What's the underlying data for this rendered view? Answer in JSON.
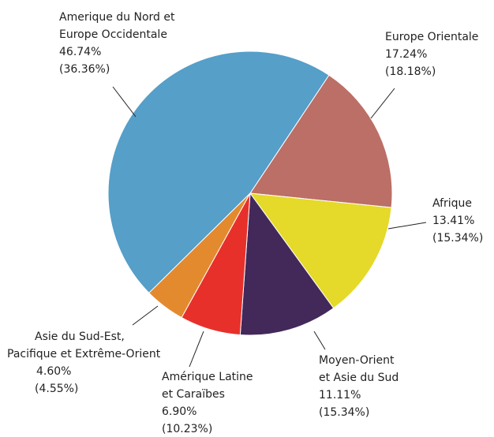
{
  "chart_data": {
    "type": "pie",
    "categories": [
      [
        "Europe Orientale"
      ],
      [
        "Afrique"
      ],
      [
        "Moyen-Orient",
        "et Asie du Sud"
      ],
      [
        "Amérique Latine",
        "et Caraïbes"
      ],
      [
        "Asie du Sud-Est,",
        "Pacifique et Extrême-Orient"
      ],
      [
        "Amerique du Nord et",
        "Europe Occidentale"
      ]
    ],
    "values": [
      17.24,
      13.41,
      11.11,
      6.9,
      4.6,
      46.74
    ],
    "value_labels": [
      "17.24%",
      "13.41%",
      "11.11%",
      "6.90%",
      "4.60%",
      "46.74%"
    ],
    "secondary_labels": [
      "(18.18%)",
      "(15.34%)",
      "(15.34%)",
      "(10.23%)",
      "(4.55%)",
      "(36.36%)"
    ],
    "colors": [
      "#bb6f66",
      "#e5d92a",
      "#42295a",
      "#e8302b",
      "#e48a2e",
      "#559fc9"
    ]
  }
}
